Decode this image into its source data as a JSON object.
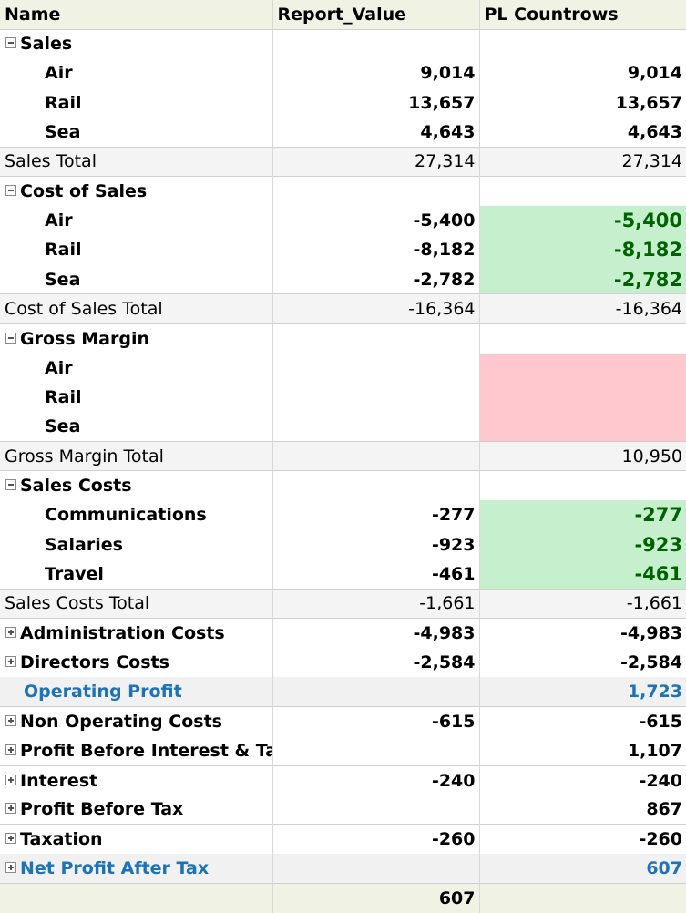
{
  "columns": [
    "Name",
    "Report_Value",
    "PL Countrows"
  ],
  "sections": {
    "sales": {
      "label": "Sales",
      "rows": [
        {
          "name": "Air",
          "report": "9,014",
          "pl": "9,014"
        },
        {
          "name": "Rail",
          "report": "13,657",
          "pl": "13,657"
        },
        {
          "name": "Sea",
          "report": "4,643",
          "pl": "4,643"
        }
      ],
      "total": {
        "name": "Sales Total",
        "report": "27,314",
        "pl": "27,314"
      }
    },
    "cost_of_sales": {
      "label": "Cost of Sales",
      "rows": [
        {
          "name": "Air",
          "report": "-5,400",
          "pl": "-5,400"
        },
        {
          "name": "Rail",
          "report": "-8,182",
          "pl": "-8,182"
        },
        {
          "name": "Sea",
          "report": "-2,782",
          "pl": "-2,782"
        }
      ],
      "total": {
        "name": "Cost of Sales Total",
        "report": "-16,364",
        "pl": "-16,364"
      }
    },
    "gross_margin": {
      "label": "Gross Margin",
      "rows": [
        {
          "name": "Air",
          "report": "",
          "pl": ""
        },
        {
          "name": "Rail",
          "report": "",
          "pl": ""
        },
        {
          "name": "Sea",
          "report": "",
          "pl": ""
        }
      ],
      "total": {
        "name": "Gross Margin Total",
        "report": "",
        "pl": "10,950"
      }
    },
    "sales_costs": {
      "label": "Sales Costs",
      "rows": [
        {
          "name": "Communications",
          "report": "-277",
          "pl": "-277"
        },
        {
          "name": "Salaries",
          "report": "-923",
          "pl": "-923"
        },
        {
          "name": "Travel",
          "report": "-461",
          "pl": "-461"
        }
      ],
      "total": {
        "name": "Sales Costs Total",
        "report": "-1,661",
        "pl": "-1,661"
      }
    }
  },
  "collapsed": [
    {
      "name": "Administration Costs",
      "report": "-4,983",
      "pl": "-4,983"
    },
    {
      "name": "Directors Costs",
      "report": "-2,584",
      "pl": "-2,584"
    },
    {
      "name": "Operating Profit",
      "report": "",
      "pl": "1,723"
    },
    {
      "name": "Non Operating Costs",
      "report": "-615",
      "pl": "-615"
    },
    {
      "name": "Profit Before Interest & Tax",
      "report": "",
      "pl": "1,107"
    },
    {
      "name": "Interest",
      "report": "-240",
      "pl": "-240"
    },
    {
      "name": "Profit Before Tax",
      "report": "",
      "pl": "867"
    },
    {
      "name": "Taxation",
      "report": "-260",
      "pl": "-260"
    },
    {
      "name": "Net Profit After Tax",
      "report": "",
      "pl": "607"
    }
  ],
  "grand_total": {
    "name": "",
    "report": "607",
    "pl": ""
  },
  "colors": {
    "header_bg": "#f0f3e3",
    "positive_highlight_bg": "#c6efce",
    "positive_highlight_text": "#006100",
    "negative_highlight_bg": "#ffc7ce",
    "subtotal_text": "#1c73b7"
  }
}
